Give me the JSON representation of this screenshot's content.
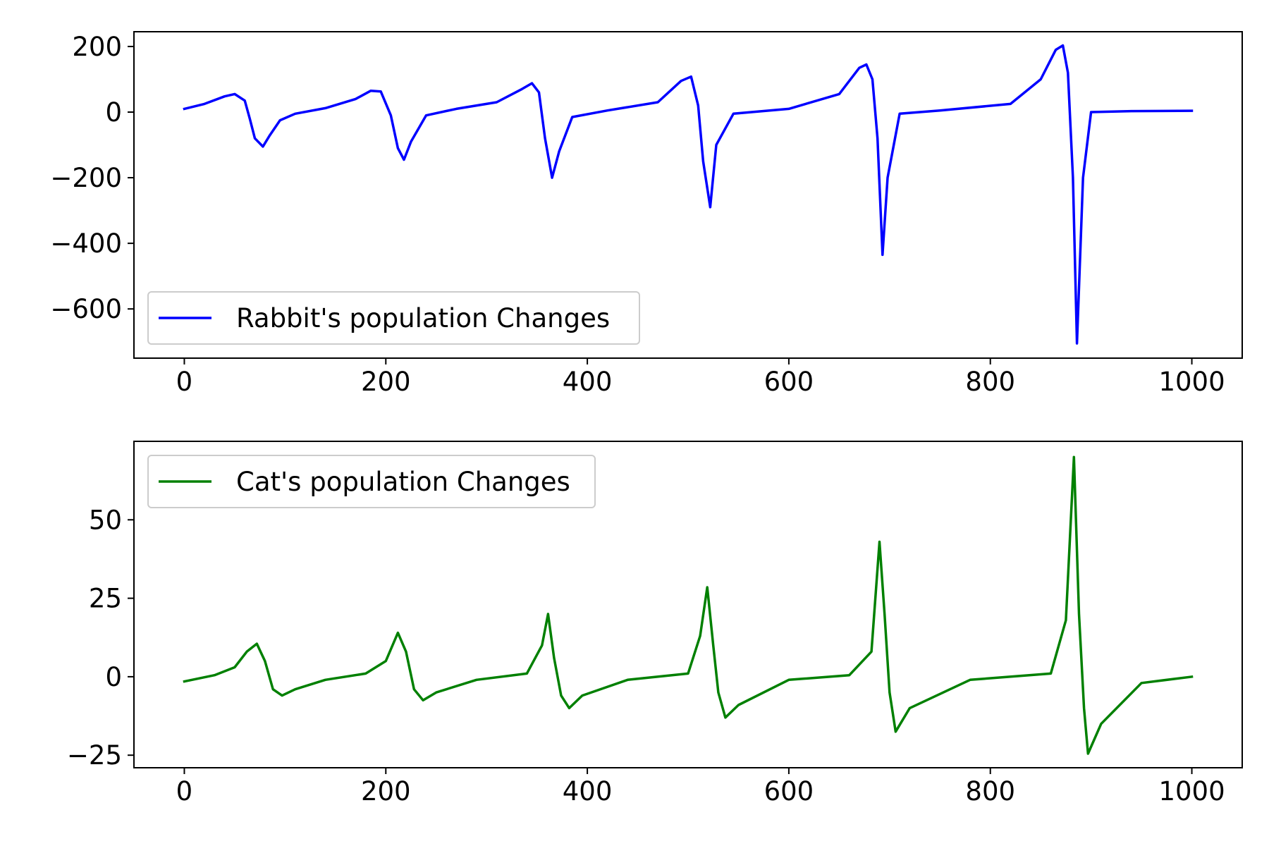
{
  "chart_data": [
    {
      "type": "line",
      "color": "#0000ff",
      "xlim": [
        -50,
        1050
      ],
      "ylim": [
        -750,
        245
      ],
      "xticks": [
        0,
        200,
        400,
        600,
        800,
        1000
      ],
      "yticks": [
        200,
        0,
        -200,
        -400,
        -600
      ],
      "xtick_labels": [
        "0",
        "200",
        "400",
        "600",
        "800",
        "1000"
      ],
      "ytick_labels": [
        "200",
        "0",
        "−200",
        "−400",
        "−600"
      ],
      "legend": {
        "label": "Rabbit's population Changes",
        "location": "lower-left"
      },
      "series": [
        {
          "name": "Rabbit's population Changes",
          "x": [
            0,
            20,
            40,
            50,
            60,
            65,
            70,
            78,
            85,
            95,
            110,
            140,
            170,
            185,
            195,
            205,
            212,
            218,
            225,
            240,
            270,
            310,
            335,
            345,
            352,
            358,
            365,
            372,
            385,
            420,
            470,
            493,
            503,
            510,
            515,
            522,
            528,
            545,
            600,
            650,
            670,
            677,
            683,
            688,
            693,
            698,
            710,
            750,
            820,
            850,
            865,
            872,
            877,
            882,
            886,
            892,
            900,
            940,
            1000
          ],
          "y": [
            10,
            25,
            48,
            55,
            35,
            -20,
            -80,
            -105,
            -70,
            -25,
            -5,
            12,
            40,
            65,
            63,
            -10,
            -110,
            -145,
            -90,
            -10,
            10,
            30,
            70,
            88,
            60,
            -80,
            -200,
            -120,
            -15,
            5,
            30,
            95,
            108,
            20,
            -150,
            -290,
            -100,
            -5,
            10,
            55,
            135,
            145,
            100,
            -80,
            -435,
            -200,
            -5,
            5,
            25,
            100,
            190,
            203,
            120,
            -200,
            -705,
            -200,
            0,
            3,
            4
          ]
        }
      ]
    },
    {
      "type": "line",
      "color": "#008000",
      "xlim": [
        -50,
        1050
      ],
      "ylim": [
        -29,
        75
      ],
      "xticks": [
        0,
        200,
        400,
        600,
        800,
        1000
      ],
      "yticks": [
        50,
        25,
        0,
        -25
      ],
      "xtick_labels": [
        "0",
        "200",
        "400",
        "600",
        "800",
        "1000"
      ],
      "ytick_labels": [
        "50",
        "25",
        "0",
        "−25"
      ],
      "legend": {
        "label": "Cat's population Changes",
        "location": "upper-left"
      },
      "series": [
        {
          "name": "Cat's population Changes",
          "x": [
            0,
            30,
            50,
            62,
            72,
            80,
            88,
            97,
            110,
            140,
            180,
            200,
            212,
            220,
            228,
            237,
            250,
            290,
            340,
            355,
            361,
            367,
            374,
            382,
            395,
            440,
            500,
            512,
            519,
            525,
            530,
            537,
            550,
            600,
            660,
            682,
            690,
            695,
            700,
            706,
            720,
            780,
            860,
            875,
            883,
            888,
            893,
            897,
            910,
            950,
            1000
          ],
          "y": [
            -1.5,
            0.5,
            3,
            8,
            10.5,
            5,
            -4,
            -6,
            -4,
            -1,
            1,
            5,
            14,
            8,
            -4,
            -7.5,
            -5,
            -1,
            1,
            10,
            20,
            6,
            -6,
            -10,
            -6,
            -1,
            1,
            13,
            28.5,
            10,
            -5,
            -13,
            -9,
            -1,
            0.5,
            8,
            43,
            20,
            -5,
            -17.5,
            -10,
            -1,
            1,
            18,
            70,
            20,
            -10,
            -24.5,
            -15,
            -2,
            0
          ]
        }
      ]
    }
  ]
}
